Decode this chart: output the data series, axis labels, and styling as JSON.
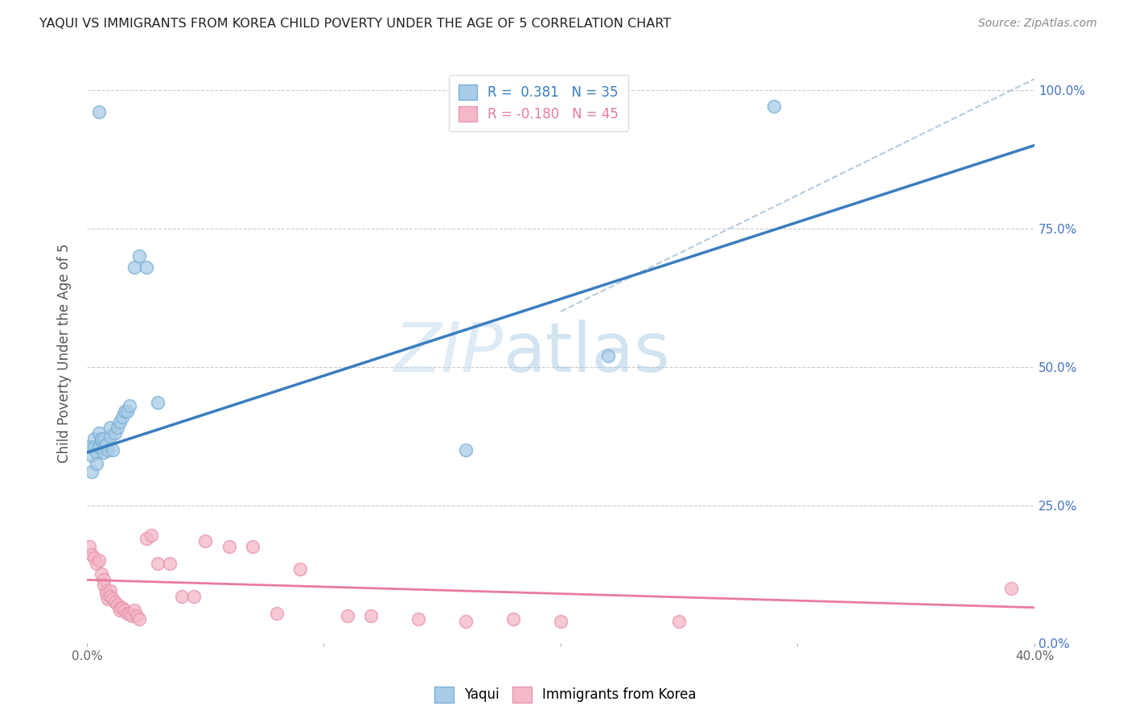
{
  "title": "YAQUI VS IMMIGRANTS FROM KOREA CHILD POVERTY UNDER THE AGE OF 5 CORRELATION CHART",
  "source": "Source: ZipAtlas.com",
  "ylabel": "Child Poverty Under the Age of 5",
  "x_min": 0.0,
  "x_max": 0.4,
  "y_min": 0.0,
  "y_max": 1.05,
  "x_ticks": [
    0.0,
    0.1,
    0.2,
    0.3,
    0.4
  ],
  "x_tick_labels": [
    "0.0%",
    "",
    "",
    "",
    "40.0%"
  ],
  "y_ticks": [
    0.0,
    0.25,
    0.5,
    0.75,
    1.0
  ],
  "y_tick_labels": [
    "0.0%",
    "25.0%",
    "50.0%",
    "75.0%",
    "100.0%"
  ],
  "watermark_zip": "ZIP",
  "watermark_atlas": "atlas",
  "blue_scatter_color": "#a8cce8",
  "blue_scatter_edge": "#7ab0d4",
  "pink_scatter_color": "#f4b8c8",
  "pink_scatter_edge": "#e896ae",
  "blue_line_color": "#3a7dbf",
  "pink_line_color": "#e87ba0",
  "dashed_line_color": "#b0c4d8",
  "yaqui_x": [
    0.001,
    0.002,
    0.002,
    0.003,
    0.003,
    0.004,
    0.004,
    0.005,
    0.005,
    0.005,
    0.006,
    0.006,
    0.007,
    0.007,
    0.008,
    0.008,
    0.009,
    0.01,
    0.01,
    0.011,
    0.012,
    0.013,
    0.014,
    0.015,
    0.016,
    0.017,
    0.018,
    0.02,
    0.022,
    0.025,
    0.03,
    0.16,
    0.22,
    0.005,
    0.29
  ],
  "yaqui_y": [
    0.355,
    0.34,
    0.31,
    0.37,
    0.355,
    0.345,
    0.325,
    0.355,
    0.38,
    0.355,
    0.365,
    0.37,
    0.345,
    0.37,
    0.36,
    0.36,
    0.35,
    0.375,
    0.39,
    0.35,
    0.38,
    0.39,
    0.4,
    0.41,
    0.42,
    0.42,
    0.43,
    0.68,
    0.7,
    0.68,
    0.435,
    0.35,
    0.52,
    0.96,
    0.97
  ],
  "korea_x": [
    0.001,
    0.002,
    0.003,
    0.004,
    0.005,
    0.006,
    0.007,
    0.007,
    0.008,
    0.008,
    0.009,
    0.01,
    0.01,
    0.011,
    0.012,
    0.013,
    0.014,
    0.014,
    0.015,
    0.016,
    0.017,
    0.018,
    0.019,
    0.02,
    0.021,
    0.022,
    0.025,
    0.027,
    0.03,
    0.035,
    0.04,
    0.045,
    0.05,
    0.06,
    0.07,
    0.08,
    0.09,
    0.11,
    0.12,
    0.14,
    0.16,
    0.18,
    0.2,
    0.25,
    0.39
  ],
  "korea_y": [
    0.175,
    0.16,
    0.155,
    0.145,
    0.15,
    0.125,
    0.115,
    0.105,
    0.095,
    0.09,
    0.08,
    0.095,
    0.085,
    0.08,
    0.075,
    0.07,
    0.065,
    0.06,
    0.065,
    0.06,
    0.055,
    0.055,
    0.05,
    0.06,
    0.05,
    0.045,
    0.19,
    0.195,
    0.145,
    0.145,
    0.085,
    0.085,
    0.185,
    0.175,
    0.175,
    0.055,
    0.135,
    0.05,
    0.05,
    0.045,
    0.04,
    0.045,
    0.04,
    0.04,
    0.1
  ],
  "blue_line_x0": 0.0,
  "blue_line_y0": 0.345,
  "blue_line_x1": 0.4,
  "blue_line_y1": 0.9,
  "pink_line_x0": 0.0,
  "pink_line_y0": 0.115,
  "pink_line_x1": 0.4,
  "pink_line_y1": 0.065,
  "dash_line_x0": 0.2,
  "dash_line_y0": 0.6,
  "dash_line_x1": 0.4,
  "dash_line_y1": 1.02
}
